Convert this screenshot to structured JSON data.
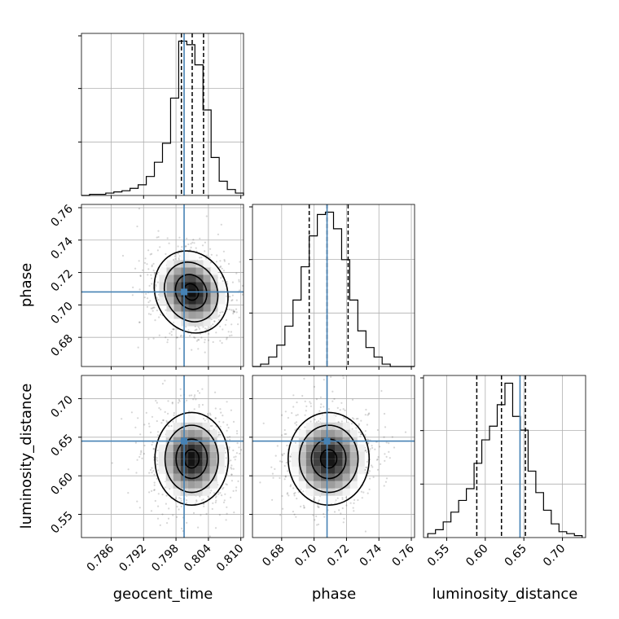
{
  "chart_data": {
    "type": "corner",
    "parameters": [
      "geocent_time",
      "phase",
      "luminosity_distance"
    ],
    "truths": {
      "geocent_time": 0.7995,
      "phase": 0.708,
      "luminosity_distance": 0.645
    },
    "colors": {
      "truth": "#4682b4",
      "hist": "#000000",
      "grid": "#b0b0b0"
    },
    "grid": true,
    "axes": {
      "geocent_time": {
        "range": [
          0.7805,
          0.8105
        ],
        "ticks": [
          0.786,
          0.792,
          0.798,
          0.804,
          0.81
        ],
        "tick_labels": [
          "0.786",
          "0.792",
          "0.798",
          "0.804",
          "0.810"
        ]
      },
      "phase": {
        "range": [
          0.662,
          0.762
        ],
        "ticks": [
          0.68,
          0.7,
          0.72,
          0.74,
          0.76
        ],
        "tick_labels": [
          "0.68",
          "0.70",
          "0.72",
          "0.74",
          "0.76"
        ]
      },
      "luminosity_distance": {
        "range": [
          0.52,
          0.73
        ],
        "ticks": [
          0.55,
          0.6,
          0.65,
          0.7
        ],
        "tick_labels": [
          "0.55",
          "0.60",
          "0.65",
          "0.70"
        ]
      }
    },
    "histograms": {
      "geocent_time": {
        "edges": [
          0.7805,
          0.782,
          0.7835,
          0.785,
          0.7865,
          0.788,
          0.7895,
          0.791,
          0.7925,
          0.794,
          0.7955,
          0.797,
          0.7985,
          0.8,
          0.8015,
          0.803,
          0.8045,
          0.806,
          0.8075,
          0.809,
          0.8105
        ],
        "counts": [
          0,
          1,
          1,
          2,
          3,
          4,
          6,
          9,
          16,
          28,
          44,
          82,
          130,
          127,
          110,
          72,
          32,
          12,
          5,
          2
        ],
        "quantiles": [
          0.799,
          0.801,
          0.8031
        ]
      },
      "phase": {
        "edges": [
          0.662,
          0.667,
          0.672,
          0.677,
          0.682,
          0.687,
          0.692,
          0.697,
          0.702,
          0.707,
          0.712,
          0.717,
          0.722,
          0.727,
          0.732,
          0.737,
          0.742,
          0.747,
          0.752,
          0.757,
          0.762
        ],
        "counts": [
          0,
          1,
          4,
          9,
          17,
          28,
          42,
          55,
          64,
          65,
          58,
          45,
          28,
          15,
          8,
          4,
          1,
          0,
          0,
          0
        ],
        "quantiles": [
          0.697,
          0.708,
          0.721
        ]
      },
      "luminosity_distance": {
        "edges": [
          0.5255,
          0.5355,
          0.5455,
          0.5555,
          0.5655,
          0.5755,
          0.5855,
          0.5955,
          0.6055,
          0.6155,
          0.6255,
          0.6355,
          0.6455,
          0.6555,
          0.6655,
          0.6755,
          0.6855,
          0.6955,
          0.7055,
          0.7155,
          0.7255
        ],
        "counts": [
          2,
          4,
          8,
          13,
          19,
          25,
          38,
          50,
          57,
          68,
          79,
          62,
          55,
          34,
          23,
          14,
          7,
          3,
          2,
          1
        ],
        "quantiles": [
          0.589,
          0.621,
          0.652
        ]
      }
    },
    "scatter_panels": [
      {
        "x": "geocent_time",
        "y": "phase",
        "center": [
          0.8008,
          0.708
        ],
        "spread": [
          0.0033,
          0.013
        ],
        "corr": 0.35
      },
      {
        "x": "geocent_time",
        "y": "luminosity_distance",
        "center": [
          0.8009,
          0.622
        ],
        "spread": [
          0.0034,
          0.03
        ],
        "corr": 0.0
      },
      {
        "x": "phase",
        "y": "luminosity_distance",
        "center": [
          0.709,
          0.622
        ],
        "spread": [
          0.0125,
          0.03
        ],
        "corr": 0.0
      }
    ]
  }
}
